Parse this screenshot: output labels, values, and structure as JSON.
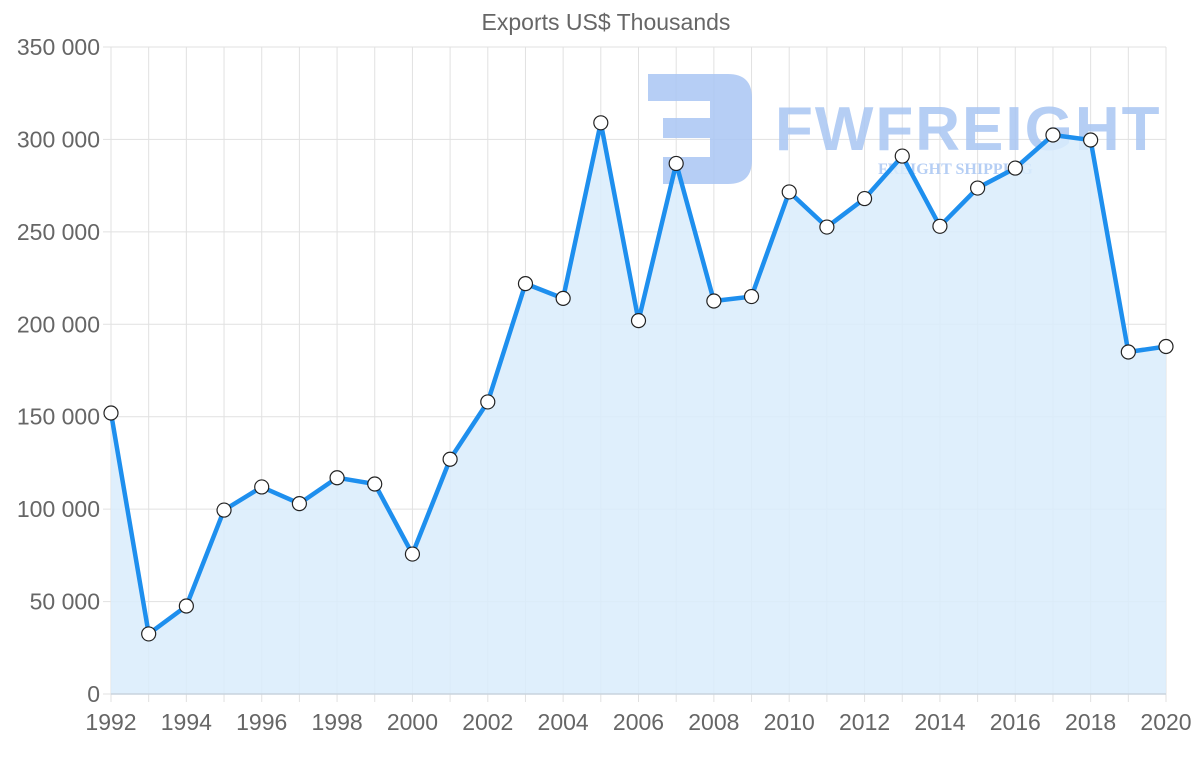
{
  "chart_data": {
    "type": "area",
    "title": "Exports US$ Thousands",
    "xlabel": "",
    "ylabel": "",
    "x": [
      1992,
      1993,
      1994,
      1995,
      1996,
      1997,
      1998,
      1999,
      2000,
      2001,
      2002,
      2003,
      2004,
      2005,
      2006,
      2007,
      2008,
      2009,
      2010,
      2011,
      2012,
      2013,
      2014,
      2015,
      2016,
      2017,
      2018,
      2019,
      2020
    ],
    "series": [
      {
        "name": "Exports US$ Thousands",
        "values": [
          152000,
          32500,
          47600,
          99500,
          112000,
          103000,
          117000,
          113600,
          75700,
          127000,
          158000,
          222000,
          214000,
          309000,
          202000,
          287000,
          212600,
          215000,
          271600,
          252600,
          268000,
          291000,
          253000,
          273700,
          284500,
          302400,
          299700,
          185000,
          188000
        ]
      }
    ],
    "ylim": [
      0,
      350000
    ],
    "yticks": [
      0,
      50000,
      100000,
      150000,
      200000,
      250000,
      300000,
      350000
    ],
    "ytick_labels": [
      "0",
      "50 000",
      "100 000",
      "150 000",
      "200 000",
      "250 000",
      "300 000",
      "350 000"
    ],
    "xtick_labels": [
      "1992",
      "1994",
      "1996",
      "1998",
      "2000",
      "2002",
      "2004",
      "2006",
      "2008",
      "2010",
      "2012",
      "2014",
      "2016",
      "2018",
      "2020"
    ],
    "grid": true,
    "legend": "none",
    "colors": {
      "line": "#1e8fee",
      "fill": "#d9ecfc",
      "grid": "#e1e1e1",
      "point_fill": "#ffffff",
      "point_stroke": "#222222"
    }
  },
  "watermark": {
    "brand": "FWFREIGHT",
    "tagline": "FREIGHT SHIPPING",
    "color": "#a9c6f3"
  }
}
